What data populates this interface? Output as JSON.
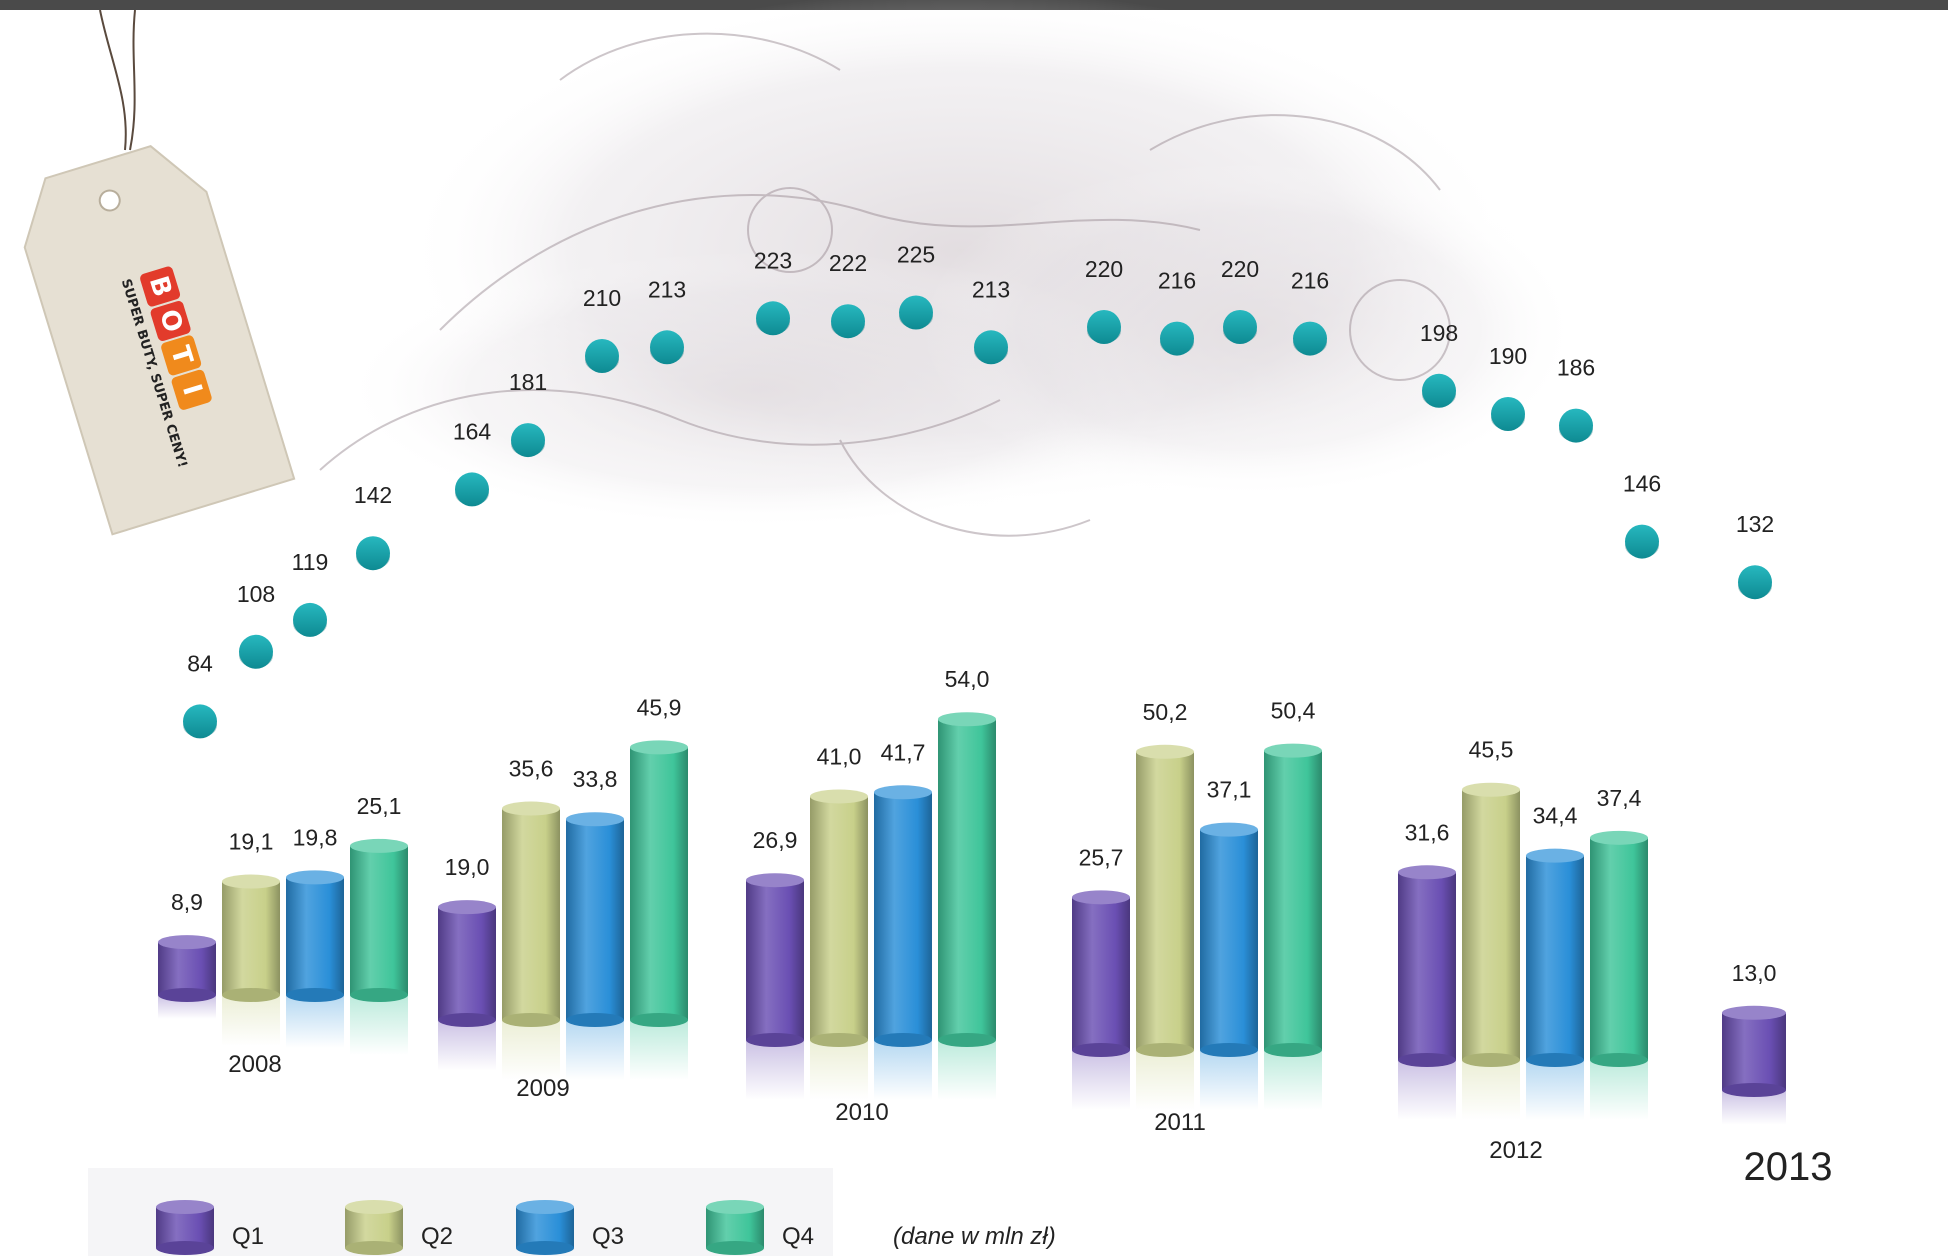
{
  "brand": {
    "logo_letters": [
      "B",
      "O",
      "T",
      "I"
    ],
    "tagline": "SUPER BUTY, SUPER CENY!"
  },
  "colors": {
    "q1": "#6a4fb3",
    "q2": "#c8d08a",
    "q3": "#2a8fd8",
    "q4": "#3fc59a",
    "dot": "#149ea6",
    "tag": "#e6e0d3",
    "logo_red": "#e23b2b",
    "logo_orange": "#f08a1c"
  },
  "chart_data": [
    {
      "type": "bar",
      "categories": [
        "2008",
        "2009",
        "2010",
        "2011",
        "2012",
        "2013"
      ],
      "series": [
        {
          "name": "Q1",
          "values": [
            8.9,
            19.0,
            26.9,
            25.7,
            31.6,
            13.0
          ],
          "labels": [
            "8,9",
            "19,0",
            "26,9",
            "25,7",
            "31,6",
            "13,0"
          ]
        },
        {
          "name": "Q2",
          "values": [
            19.1,
            35.6,
            41.0,
            50.2,
            45.5,
            null
          ],
          "labels": [
            "19,1",
            "35,6",
            "41,0",
            "50,2",
            "45,5",
            ""
          ]
        },
        {
          "name": "Q3",
          "values": [
            19.8,
            33.8,
            41.7,
            37.1,
            34.4,
            null
          ],
          "labels": [
            "19,8",
            "33,8",
            "41,7",
            "37,1",
            "34,4",
            ""
          ]
        },
        {
          "name": "Q4",
          "values": [
            25.1,
            45.9,
            54.0,
            50.4,
            37.4,
            null
          ],
          "labels": [
            "25,1",
            "45,9",
            "54,0",
            "50,4",
            "37,4",
            ""
          ]
        }
      ],
      "unit_note": "(dane w mln zł)",
      "legend": "bottom"
    },
    {
      "type": "scatter",
      "values": [
        84,
        108,
        119,
        142,
        164,
        181,
        210,
        213,
        223,
        222,
        225,
        213,
        220,
        216,
        220,
        216,
        198,
        190,
        186,
        146,
        132
      ]
    }
  ]
}
